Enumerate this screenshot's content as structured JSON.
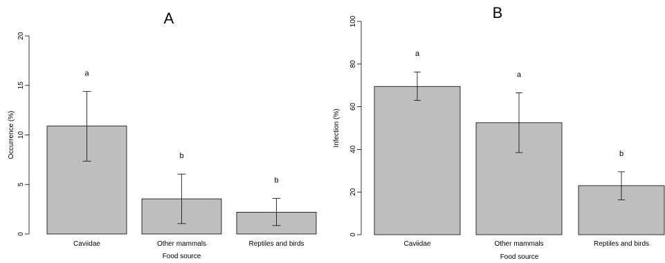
{
  "chart_data": [
    {
      "type": "bar",
      "title": "A",
      "xlabel": "Food source",
      "ylabel": "Occurrence (%)",
      "ylim": [
        0,
        20
      ],
      "yticks": [
        "0",
        "5",
        "10",
        "15",
        "20"
      ],
      "categories": [
        "Caviidae",
        "Other mammals",
        "Reptiles and birds"
      ],
      "values": [
        10.9,
        3.55,
        2.2
      ],
      "error_low": [
        7.35,
        1.05,
        0.85
      ],
      "error_high": [
        14.4,
        6.05,
        3.6
      ],
      "significance_labels": [
        "a",
        "b",
        "b"
      ],
      "bar_color": "#bebebe",
      "grid": false
    },
    {
      "type": "bar",
      "title": "B",
      "xlabel": "Food source",
      "ylabel": "Infection (%)",
      "ylim": [
        0,
        100
      ],
      "yticks": [
        "0",
        "20",
        "40",
        "60",
        "80",
        "100"
      ],
      "categories": [
        "Caviidae",
        "Other mammals",
        "Reptiles and birds"
      ],
      "values": [
        69.5,
        52.5,
        23.0
      ],
      "error_low": [
        63.0,
        38.5,
        16.3
      ],
      "error_high": [
        76.3,
        66.5,
        29.5
      ],
      "significance_labels": [
        "a",
        "a",
        "b"
      ],
      "bar_color": "#bebebe",
      "grid": false
    }
  ]
}
